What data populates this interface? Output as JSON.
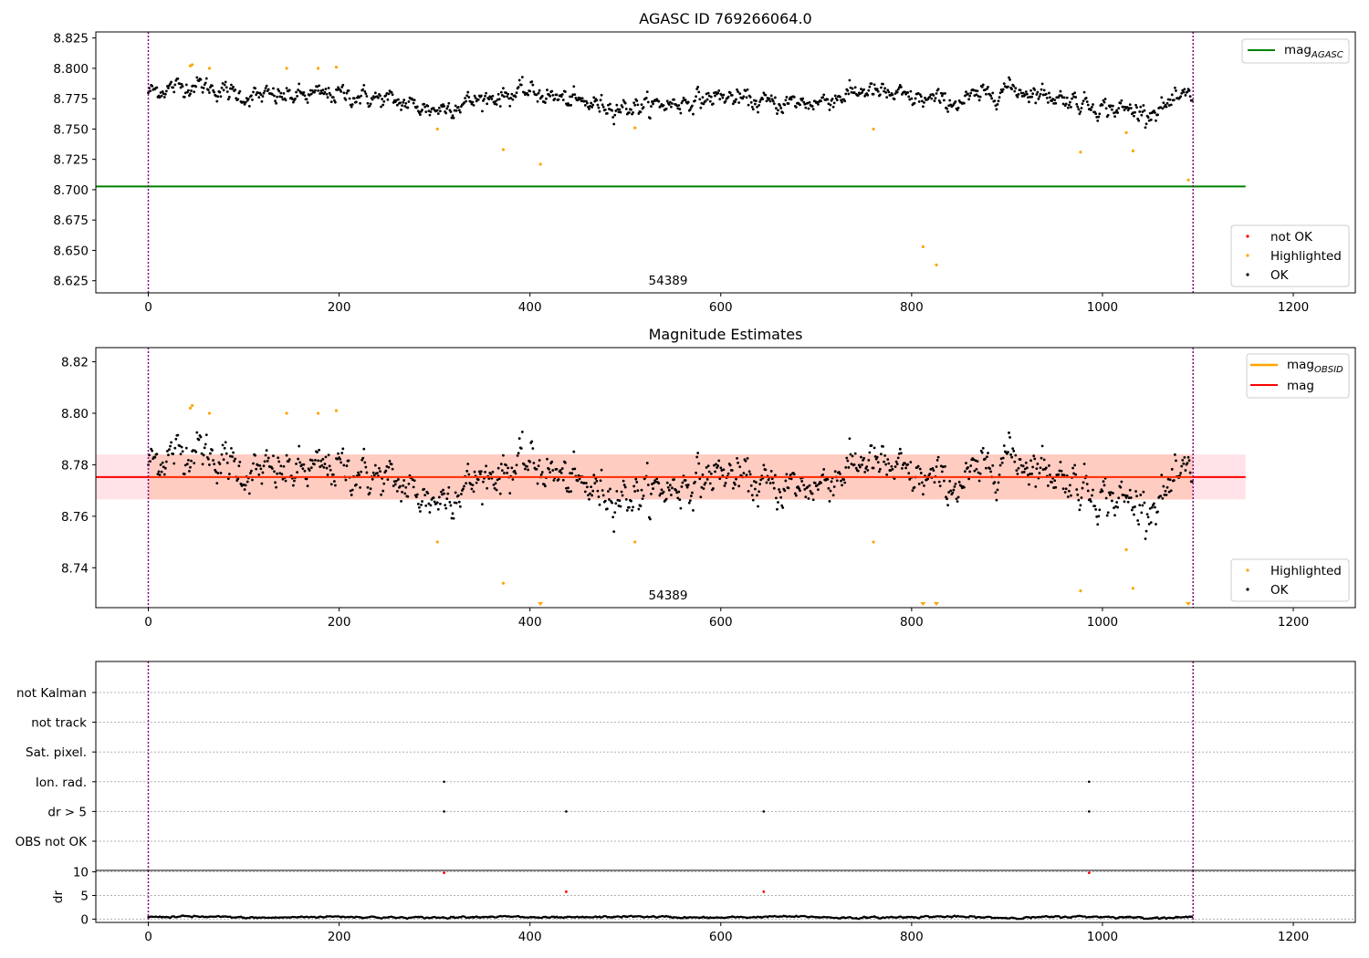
{
  "figure": {
    "panel1": {
      "title": "AGASC ID 769266064.0",
      "annotation": "54389",
      "legend_line": {
        "label": "mag",
        "subscript": "AGASC"
      },
      "legend_points": [
        "not OK",
        "Highlighted",
        "OK"
      ]
    },
    "panel2": {
      "title": "Magnitude Estimates",
      "annotation": "54389",
      "legend_lines": [
        {
          "label": "mag",
          "subscript": "OBSID"
        },
        {
          "label": "mag",
          "subscript": ""
        }
      ],
      "legend_points": [
        "Highlighted",
        "OK"
      ]
    },
    "panel3": {
      "flag_labels": [
        "not Kalman",
        "not track",
        "Sat. pixel.",
        "Ion. rad.",
        "dr > 5",
        "OBS not OK"
      ],
      "ylabel": "dr"
    }
  },
  "colors": {
    "ok": "#000000",
    "highlighted": "#ffa500",
    "not_ok": "#ff0000",
    "mag_agasc": "#008000",
    "mag": "#ff0000",
    "mag_obsid": "#ffa500",
    "band_outer": "#ffc0cb",
    "band_inner": "#ffa07a",
    "vline": "#800080"
  },
  "chart_data": [
    {
      "type": "scatter",
      "title": "AGASC ID 769266064.0",
      "xlim": [
        -55,
        1265
      ],
      "ylim": [
        8.615,
        8.83
      ],
      "xticks": [
        0,
        200,
        400,
        600,
        800,
        1000,
        1200
      ],
      "yticks": [
        8.625,
        8.65,
        8.675,
        8.7,
        8.725,
        8.75,
        8.775,
        8.8,
        8.825
      ],
      "x_range": [
        0,
        1095
      ],
      "hlines": [
        {
          "name": "mag_AGASC",
          "y": 8.7027,
          "x": [
            -55,
            1150
          ]
        }
      ],
      "vlines": [
        0,
        1095
      ],
      "series": [
        {
          "name": "OK",
          "n_points": 1095,
          "level_profile": {
            "x": [
              0,
              50,
              100,
              150,
              200,
              250,
              300,
              350,
              400,
              450,
              500,
              550,
              600,
              650,
              700,
              750,
              800,
              850,
              900,
              950,
              1000,
              1050,
              1095
            ],
            "y": [
              8.781,
              8.787,
              8.777,
              8.777,
              8.779,
              8.774,
              8.766,
              8.775,
              8.781,
              8.772,
              8.768,
              8.771,
              8.777,
              8.771,
              8.772,
              8.782,
              8.775,
              8.772,
              8.784,
              8.777,
              8.768,
              8.764,
              8.778
            ]
          }
        },
        {
          "name": "Highlighted",
          "x": [
            44,
            46,
            64,
            145,
            178,
            197,
            303,
            372,
            411,
            510,
            760,
            977,
            1025,
            1032,
            1090,
            812,
            826
          ],
          "y": [
            8.802,
            8.803,
            8.8,
            8.8,
            8.8,
            8.801,
            8.75,
            8.733,
            8.721,
            8.751,
            8.75,
            8.731,
            8.747,
            8.732,
            8.708,
            8.653,
            8.638
          ]
        },
        {
          "name": "not OK",
          "x": [],
          "y": []
        }
      ]
    },
    {
      "type": "scatter",
      "title": "Magnitude Estimates",
      "xlim": [
        -55,
        1265
      ],
      "ylim": [
        8.7245,
        8.8255
      ],
      "xticks": [
        0,
        200,
        400,
        600,
        800,
        1000,
        1200
      ],
      "yticks": [
        8.74,
        8.76,
        8.78,
        8.8,
        8.82
      ],
      "hlines": [
        {
          "name": "mag",
          "y": 8.7752,
          "x": [
            -55,
            1150
          ]
        }
      ],
      "bands": [
        {
          "y": [
            8.7665,
            8.784
          ],
          "x": [
            -55,
            1150
          ],
          "color": "pink"
        },
        {
          "y": [
            8.7665,
            8.784
          ],
          "x": [
            0,
            1095
          ],
          "color": "lightsalmon"
        }
      ],
      "vlines": [
        0,
        1095
      ],
      "clipped_markers_x": [
        411,
        812,
        826,
        1090
      ],
      "series": [
        {
          "name": "OK",
          "n_points": 1095
        },
        {
          "name": "Highlighted",
          "x": [
            44,
            46,
            64,
            145,
            178,
            197,
            303,
            372,
            510,
            760,
            977,
            1025,
            1032
          ],
          "y": [
            8.802,
            8.803,
            8.8,
            8.8,
            8.8,
            8.801,
            8.75,
            8.734,
            8.75,
            8.75,
            8.731,
            8.747,
            8.732
          ]
        }
      ]
    },
    {
      "type": "scatter",
      "xlim": [
        -55,
        1265
      ],
      "xticks": [
        0,
        200,
        400,
        600,
        800,
        1000,
        1200
      ],
      "categories": [
        "not Kalman",
        "not track",
        "Sat. pixel.",
        "Ion. rad.",
        "dr > 5",
        "OBS not OK"
      ],
      "flags": [
        {
          "category": "Ion. rad.",
          "x": [
            310,
            986
          ]
        },
        {
          "category": "dr > 5",
          "x": [
            310,
            438,
            645,
            986
          ]
        }
      ],
      "vlines": [
        0,
        1095
      ]
    },
    {
      "type": "scatter",
      "ylabel": "dr",
      "xlim": [
        -55,
        1265
      ],
      "ylim": [
        -0.7,
        10.3
      ],
      "yticks": [
        0,
        5,
        10
      ],
      "xticks": [
        0,
        200,
        400,
        600,
        800,
        1000,
        1200
      ],
      "series": [
        {
          "name": "dr",
          "n_points": 1095,
          "typical": 0.4
        },
        {
          "name": "dr > 5",
          "x": [
            310,
            438,
            645,
            986
          ],
          "y": [
            9.8,
            5.8,
            5.8,
            9.8
          ]
        }
      ],
      "vlines": [
        0,
        1095
      ]
    }
  ]
}
